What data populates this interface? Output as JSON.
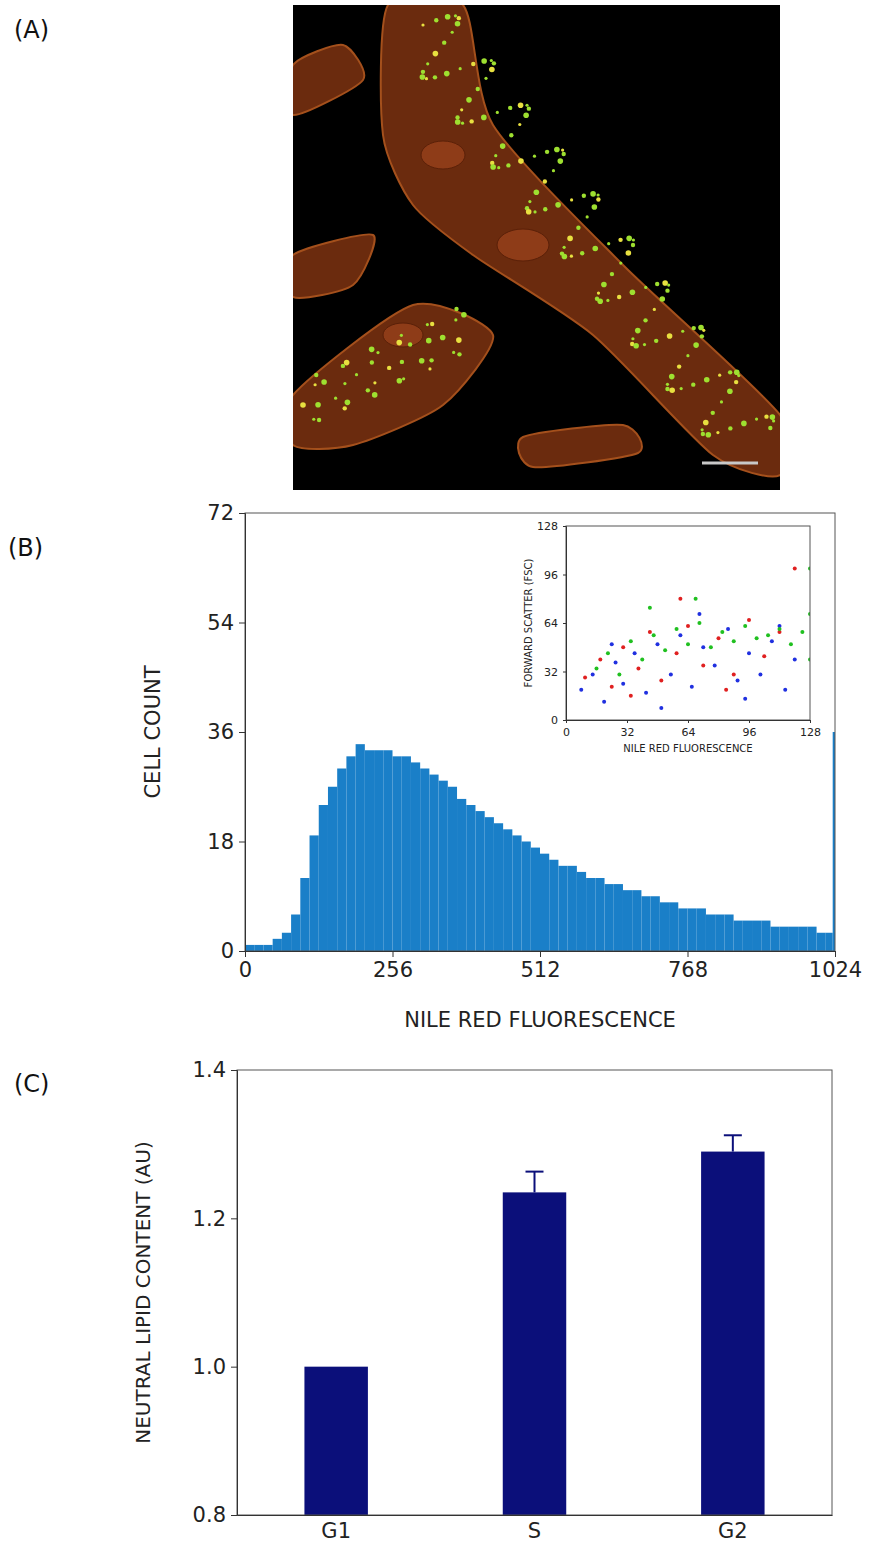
{
  "chart_data": [
    {
      "type": "image",
      "panel_label": "(A)"
    },
    {
      "type": "histogram",
      "panel_label": "(B)",
      "x_label": "NILE RED FLUORESCENCE",
      "y_label": "CELL COUNT",
      "bins": [
        0,
        16,
        32,
        48,
        64,
        80,
        96,
        112,
        128,
        144,
        160,
        176,
        192,
        208,
        224,
        240,
        256,
        272,
        288,
        304,
        320,
        336,
        352,
        368,
        384,
        400,
        416,
        432,
        448,
        464,
        480,
        496,
        512,
        528,
        544,
        560,
        576,
        592,
        608,
        624,
        640,
        656,
        672,
        688,
        704,
        720,
        736,
        752,
        768,
        784,
        800,
        816,
        832,
        848,
        864,
        880,
        896,
        912,
        928,
        944,
        960,
        976,
        992,
        1008,
        1020,
        1024
      ],
      "values": [
        1,
        1,
        1,
        2,
        3,
        6,
        12,
        19,
        24,
        27,
        30,
        32,
        34,
        33,
        33,
        33,
        32,
        32,
        31,
        30,
        29,
        28,
        27,
        25,
        24,
        23,
        22,
        21,
        20,
        19,
        18,
        17,
        16,
        15,
        14,
        14,
        13,
        12,
        12,
        11,
        11,
        10,
        10,
        9,
        9,
        8,
        8,
        7,
        7,
        7,
        6,
        6,
        6,
        5,
        5,
        5,
        5,
        4,
        4,
        4,
        4,
        4,
        3,
        3,
        36
      ],
      "color": "#1a7fc8",
      "xlim": [
        0,
        1024
      ],
      "xticks": [
        0,
        256,
        512,
        768,
        1024
      ],
      "ylim": [
        0,
        72
      ],
      "yticks": [
        0,
        18,
        36,
        54,
        72
      ]
    },
    {
      "type": "scatter",
      "x_label": "NILE RED FLUORESCENCE",
      "y_label": "FORWARD SCATTER (FSC)",
      "xlim": [
        0,
        128
      ],
      "xticks": [
        0,
        32,
        64,
        96,
        128
      ],
      "ylim": [
        0,
        128
      ],
      "yticks": [
        0,
        32,
        64,
        96,
        128
      ],
      "series": [
        {
          "color": "#2030e0",
          "x": [
            8,
            14,
            20,
            26,
            30,
            36,
            42,
            48,
            55,
            60,
            66,
            72,
            78,
            85,
            90,
            96,
            102,
            108,
            115,
            120,
            24,
            50,
            70,
            94,
            112
          ],
          "values": [
            20,
            30,
            12,
            38,
            24,
            44,
            18,
            50,
            30,
            56,
            22,
            48,
            36,
            60,
            26,
            44,
            30,
            52,
            20,
            40,
            50,
            8,
            70,
            14,
            62
          ]
        },
        {
          "color": "#e02020",
          "x": [
            10,
            18,
            24,
            30,
            38,
            44,
            50,
            58,
            64,
            72,
            80,
            88,
            96,
            104,
            112,
            120,
            34,
            60,
            84
          ],
          "values": [
            28,
            40,
            22,
            48,
            34,
            58,
            26,
            44,
            62,
            36,
            54,
            30,
            66,
            42,
            58,
            100,
            16,
            80,
            20
          ]
        },
        {
          "color": "#20c020",
          "x": [
            16,
            22,
            28,
            34,
            40,
            46,
            52,
            58,
            64,
            70,
            76,
            82,
            88,
            94,
            100,
            106,
            112,
            118,
            124,
            128,
            128,
            128,
            44,
            68
          ],
          "values": [
            34,
            44,
            30,
            52,
            40,
            56,
            46,
            60,
            50,
            64,
            48,
            58,
            52,
            62,
            54,
            56,
            60,
            50,
            58,
            40,
            70,
            100,
            74,
            80
          ]
        }
      ]
    },
    {
      "type": "bar",
      "panel_label": "(C)",
      "y_label": "NEUTRAL LIPID CONTENT (AU)",
      "categories": [
        "G1",
        "S",
        "G2"
      ],
      "values": [
        1.0,
        1.235,
        1.29
      ],
      "error": [
        0,
        0.028,
        0.022
      ],
      "color": "#0b0f7a",
      "ylim": [
        0.8,
        1.4
      ],
      "yticks": [
        0.8,
        {
          "value": 1,
          "label": "1.0"
        },
        1.2,
        1.4
      ]
    }
  ]
}
